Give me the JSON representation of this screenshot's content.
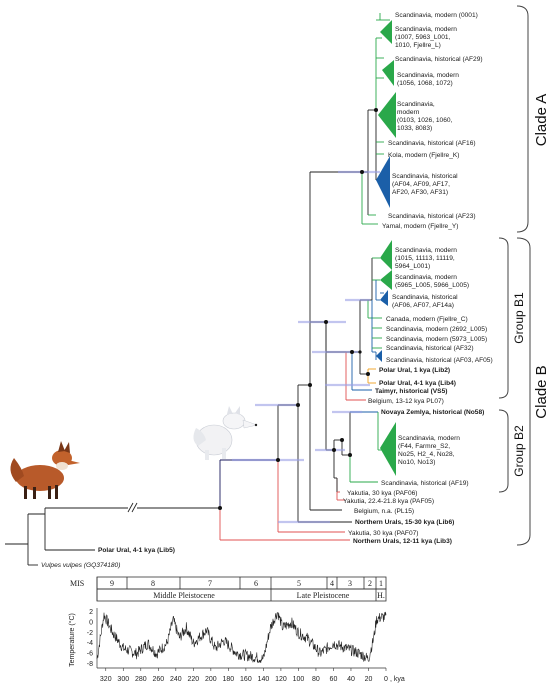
{
  "tree": {
    "clade_a_label": "Clade A",
    "clade_b_label": "Clade B",
    "group_b1_label": "Group B1",
    "group_b2_label": "Group B2",
    "branch_colors": {
      "green": "#2aa84a",
      "blue": "#1b5fa8",
      "orange": "#f0a020",
      "red": "#e05050",
      "navy": "#1a1a5c",
      "black": "#222222"
    },
    "tips": {
      "a1": "Scandinavia, modern (0001)",
      "a2": [
        "Scandinavia, modern",
        "(1007, 5963_L001,",
        "1010, Fjellre_L)"
      ],
      "a3": "Scandinavia, historical (AF29)",
      "a4": [
        "Scandinavia, modern",
        "(1056, 1068, 1072)"
      ],
      "a5": [
        "Scandinavia,",
        "modern",
        "(0103, 1026, 1060,",
        "1033, 8083)"
      ],
      "a6": "Scandinavia, historical (AF16)",
      "a7": "Kola, modern (Fjellre_K)",
      "a8": [
        "Scandinavia, historical",
        "(AF04, AF09, AF17,",
        "AF20, AF30, AF31)"
      ],
      "a9": "Scandinavia, historical (AF23)",
      "a10": "Yamal, modern (Fjellre_Y)",
      "b1": [
        "Scandinavia, modern",
        "(1015, 11113, 11119,",
        "5964_L001)"
      ],
      "b2": [
        "Scandinavia, modern",
        "(5965_L005, 5966_L005)"
      ],
      "b3": [
        "Scandinavia, historical",
        "(AF06, AF07, AF14a)"
      ],
      "b4": "Canada, modern (Fjellre_C)",
      "b5": "Scandinavia, modern (2692_L005)",
      "b6": "Scandinavia, modern (5973_L005)",
      "b7": "Scandinavia, historical (AF32)",
      "b8": "Scandinavia, historical (AF03, AF05)",
      "b9": "Polar Ural, 1 kya (Lib2)",
      "b10": "Polar Ural, 4-1 kya (Lib4)",
      "b11": "Taimyr, historical (VS5)",
      "b12": "Belgium, 13-12 kya PL07)",
      "c1": "Novaya Zemlya, historical (No58)",
      "c2": [
        "Scandinavia, modern",
        "(F44, Farmre_S2,",
        "No25, H2_4, No28,",
        "No10, No13)"
      ],
      "c3": "Scandinavia, historical (AF19)",
      "d1": "Yakutia, 30 kya (PAF06)",
      "d2": "Yakutia, 22.4-21.8 kya (PAF05)",
      "d3": "Belgium, n.a. (PL15)",
      "d4": "Northern Urals, 15-30 kya (Lib6)",
      "d5": "Yakutia, 30 kya (PAF07)",
      "d6": "Northern Urals, 12-11 kya (Lib3)",
      "out1": "Polar Ural, 4-1 kya (Lib5)",
      "out2": "Vulpes vulpes (GQ374180)"
    }
  },
  "timeline": {
    "mis_label": "MIS",
    "mis_stages": [
      "9",
      "8",
      "7",
      "6",
      "5",
      "4",
      "3",
      "2",
      "1"
    ],
    "epoch_middle": "Middle Pleistocene",
    "epoch_late": "Late Pleistocene",
    "epoch_holocene": "H.",
    "ylabel": "Temperature (°C)",
    "yticks": [
      "2",
      "0",
      "-2",
      "-4",
      "-6",
      "-8"
    ],
    "xticks": [
      "320",
      "300",
      "280",
      "260",
      "240",
      "220",
      "200",
      "180",
      "160",
      "140",
      "120",
      "100",
      "80",
      "60",
      "40",
      "20",
      "0"
    ],
    "xunit": ", kya"
  },
  "images": {
    "red_fox": "red-fox-photo",
    "arctic_fox": "arctic-fox-photo"
  }
}
